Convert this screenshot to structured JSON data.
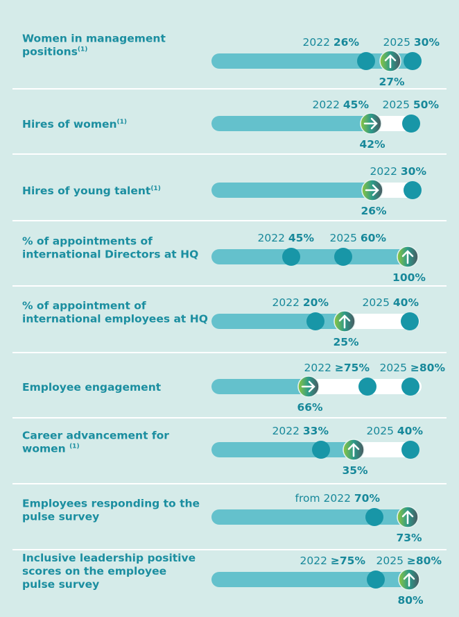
{
  "rows": [
    {
      "label": [
        "Women in management",
        "positions"
      ],
      "note": "(1)",
      "targets": [
        {
          "year": "2022",
          "value": "26%"
        },
        {
          "year": "2025",
          "value": "30%"
        }
      ],
      "current": "27%"
    },
    {
      "label": [
        "Hires of women"
      ],
      "note": "(1)",
      "targets": [
        {
          "year": "2022",
          "value": "45%"
        },
        {
          "year": "2025",
          "value": "50%"
        }
      ],
      "current": "42%"
    },
    {
      "label": [
        "Hires of young talent"
      ],
      "note": "(1)",
      "targets": [
        {
          "year": "2022",
          "value": "30%"
        }
      ],
      "current": "26%"
    },
    {
      "label": [
        "% of appointments of",
        "international Directors at HQ"
      ],
      "targets": [
        {
          "year": "2022",
          "value": "45%"
        },
        {
          "year": "2025",
          "value": "60%"
        }
      ],
      "current": "100%"
    },
    {
      "label": [
        "% of appointment of",
        "international employees at HQ"
      ],
      "targets": [
        {
          "year": "2022",
          "value": "20%"
        },
        {
          "year": "2025",
          "value": "40%"
        }
      ],
      "current": "25%"
    },
    {
      "label": [
        "Employee engagement"
      ],
      "targets": [
        {
          "year": "2022",
          "value": "≥75%"
        },
        {
          "year": "2025",
          "value": "≥80%"
        }
      ],
      "current": "66%"
    },
    {
      "label": [
        "Career advancement for",
        "women "
      ],
      "note": "(1)",
      "targets": [
        {
          "year": "2022",
          "value": "33%"
        },
        {
          "year": "2025",
          "value": "40%"
        }
      ],
      "current": "35%"
    },
    {
      "label": [
        "Employees responding to the",
        "pulse survey"
      ],
      "targets": [
        {
          "year": "from 2022",
          "value": "70%"
        }
      ],
      "current": "73%"
    },
    {
      "label": [
        "Inclusive leadership positive",
        "scores on the employee",
        "pulse survey"
      ],
      "targets": [
        {
          "year": "2022",
          "value": "≥75%"
        },
        {
          "year": "2025",
          "value": "≥80%"
        }
      ],
      "current": "80%"
    }
  ]
}
